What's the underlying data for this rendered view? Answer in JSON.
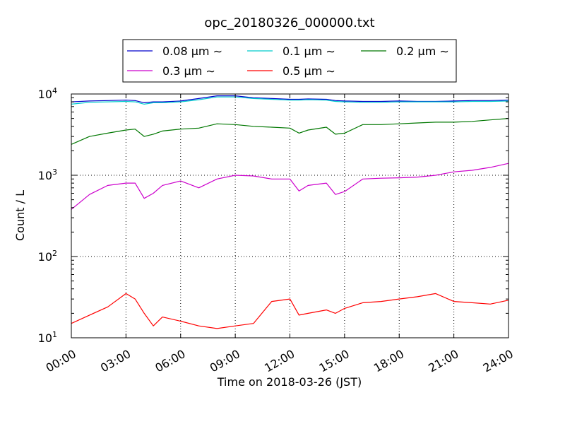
{
  "chart_data": {
    "type": "line",
    "title": "opc_20180326_000000.txt",
    "xlabel": "Time on 2018-03-26 (JST)",
    "ylabel": "Count / L",
    "yscale": "log",
    "ylim": [
      10,
      10000
    ],
    "xlim": [
      "00:00",
      "24:00"
    ],
    "grid": true,
    "legend_position": "top-center, outside plot",
    "x_ticks": [
      "00:00",
      "03:00",
      "06:00",
      "09:00",
      "12:00",
      "15:00",
      "18:00",
      "21:00",
      "24:00"
    ],
    "y_ticks": [
      {
        "base": "10",
        "exp": "1",
        "value": 10
      },
      {
        "base": "10",
        "exp": "2",
        "value": 100
      },
      {
        "base": "10",
        "exp": "3",
        "value": 1000
      },
      {
        "base": "10",
        "exp": "4",
        "value": 10000
      }
    ],
    "x": [
      "00:00",
      "01:00",
      "02:00",
      "03:00",
      "03:30",
      "04:00",
      "04:30",
      "05:00",
      "06:00",
      "07:00",
      "08:00",
      "09:00",
      "10:00",
      "11:00",
      "12:00",
      "12:30",
      "13:00",
      "14:00",
      "14:30",
      "15:00",
      "16:00",
      "17:00",
      "18:00",
      "19:00",
      "20:00",
      "21:00",
      "22:00",
      "23:00",
      "24:00"
    ],
    "series": [
      {
        "name": "0.08 μm ∼",
        "color": "#0000cc",
        "values": [
          8000,
          8200,
          8300,
          8400,
          8300,
          7800,
          8000,
          8000,
          8200,
          8800,
          9500,
          9500,
          9000,
          8800,
          8600,
          8600,
          8700,
          8600,
          8300,
          8200,
          8100,
          8100,
          8200,
          8100,
          8100,
          8200,
          8300,
          8300,
          8400
        ]
      },
      {
        "name": "0.1 μm ∼",
        "color": "#00cccc",
        "values": [
          7500,
          7900,
          8000,
          8100,
          8000,
          7500,
          7800,
          7800,
          8000,
          8500,
          9200,
          9200,
          8800,
          8600,
          8400,
          8400,
          8500,
          8400,
          8100,
          8000,
          7900,
          7900,
          8000,
          8000,
          8000,
          8000,
          8100,
          8100,
          8200
        ]
      },
      {
        "name": "0.2 μm ∼",
        "color": "#007700",
        "values": [
          2400,
          3000,
          3300,
          3600,
          3700,
          3000,
          3200,
          3500,
          3700,
          3800,
          4300,
          4200,
          4000,
          3900,
          3800,
          3300,
          3600,
          3900,
          3200,
          3300,
          4200,
          4200,
          4300,
          4400,
          4500,
          4500,
          4600,
          4800,
          5000
        ]
      },
      {
        "name": "0.3 μm ∼",
        "color": "#cc00cc",
        "values": [
          380,
          580,
          750,
          800,
          800,
          520,
          600,
          750,
          850,
          700,
          900,
          1000,
          980,
          900,
          900,
          640,
          750,
          800,
          580,
          630,
          900,
          920,
          930,
          950,
          1000,
          1100,
          1150,
          1250,
          1400
        ]
      },
      {
        "name": "0.5 μm ∼",
        "color": "#ff0000",
        "values": [
          15,
          19,
          24,
          35,
          30,
          20,
          14,
          18,
          16,
          14,
          13,
          14,
          15,
          28,
          30,
          19,
          20,
          22,
          20,
          23,
          27,
          28,
          30,
          32,
          35,
          28,
          27,
          26,
          29
        ]
      }
    ]
  }
}
